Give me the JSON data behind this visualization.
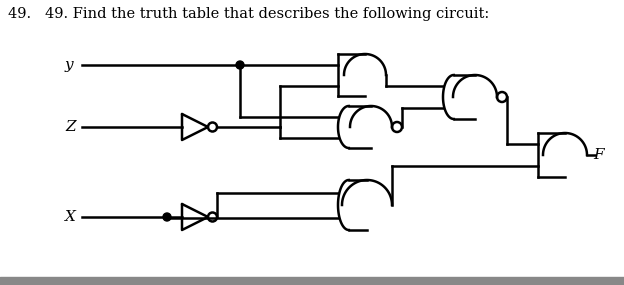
{
  "title": "49.   49. Find the truth table that describes the following circuit:",
  "title_fontsize": 10.5,
  "bg_color": "#ffffff",
  "line_color": "#000000",
  "label_y": "y",
  "label_z": "Z",
  "label_x": "X",
  "label_f": "F",
  "fig_w": 6.24,
  "fig_h": 2.85,
  "dpi": 100
}
